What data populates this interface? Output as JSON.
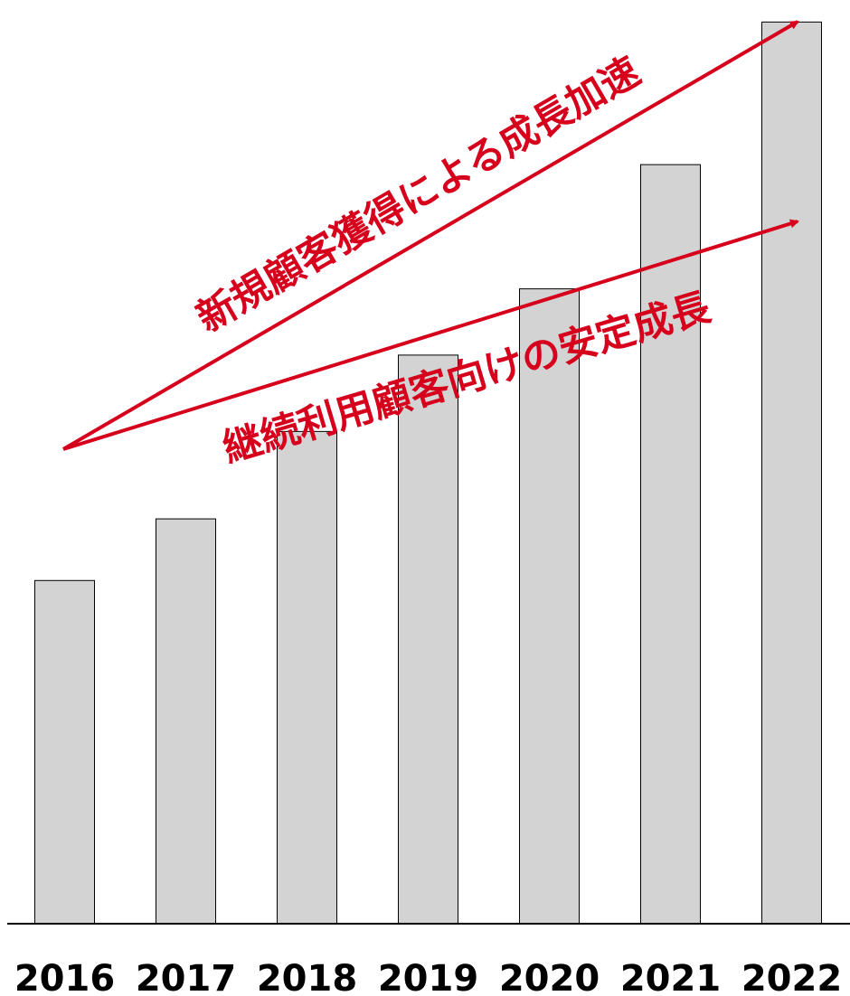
{
  "chart_data": {
    "type": "bar",
    "title": "",
    "xlabel": "",
    "ylabel": "",
    "grid": false,
    "categories": [
      "2016",
      "2017",
      "2018",
      "2019",
      "2020",
      "2021",
      "2022"
    ],
    "values": [
      37.3,
      44.0,
      53.5,
      61.8,
      69.0,
      82.5,
      98.0
    ],
    "ylim": [
      0,
      100
    ],
    "colors": {
      "bar_fill": "#d3d3d3",
      "bar_stroke": "#000000",
      "annotation": "#d6001c"
    },
    "annotations": [
      {
        "text": "新規顧客獲得による成長加速",
        "from": "2016",
        "to": "2022"
      },
      {
        "text": "継続利用顧客向けの安定成長",
        "from": "2016",
        "to": "2022"
      }
    ]
  }
}
